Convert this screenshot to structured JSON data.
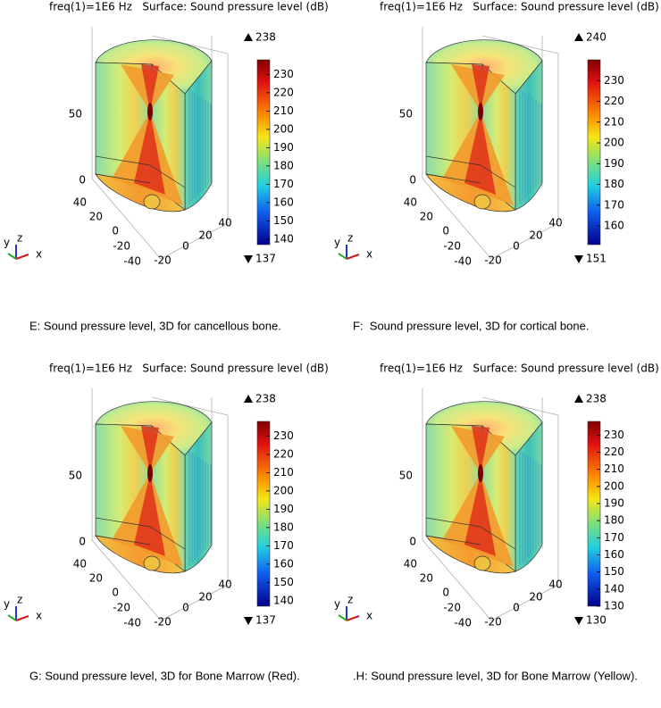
{
  "panels": [
    {
      "header": "freq(1)=1E6 Hz   Surface: Sound pressure level (dB)",
      "max": 238,
      "min": 137,
      "colorbar_ticks": [
        230,
        220,
        210,
        200,
        190,
        180,
        170,
        160,
        150,
        140
      ],
      "z_ticks": [
        50,
        0
      ],
      "y_ticks": [
        40,
        20,
        0,
        -20,
        -40
      ],
      "x_ticks": [
        -20,
        0,
        20,
        40
      ],
      "triad": [
        "y",
        "z",
        "x"
      ],
      "caption": "E: Sound pressure level, 3D for cancellous bone."
    },
    {
      "header": "freq(1)=1E6 Hz   Surface: Sound pressure level (dB)",
      "max": 240,
      "min": 151,
      "colorbar_ticks": [
        230,
        220,
        210,
        200,
        190,
        180,
        170,
        160
      ],
      "z_ticks": [
        50,
        0
      ],
      "y_ticks": [
        40,
        20,
        0,
        -20,
        -40
      ],
      "x_ticks": [
        -20,
        0,
        20,
        40
      ],
      "triad": [
        "y",
        "z",
        "x"
      ],
      "caption": "F:  Sound pressure level, 3D for cortical bone."
    },
    {
      "header": "freq(1)=1E6 Hz   Surface: Sound pressure level (dB)",
      "max": 238,
      "min": 137,
      "colorbar_ticks": [
        230,
        220,
        210,
        200,
        190,
        180,
        170,
        160,
        150,
        140
      ],
      "z_ticks": [
        50,
        0
      ],
      "y_ticks": [
        40,
        20,
        0,
        -20,
        -40
      ],
      "x_ticks": [
        -20,
        0,
        20,
        40
      ],
      "triad": [
        "y",
        "z",
        "x"
      ],
      "caption": "G: Sound pressure level, 3D for Bone Marrow (Red)."
    },
    {
      "header": "freq(1)=1E6 Hz   Surface: Sound pressure level (dB)",
      "max": 238,
      "min": 130,
      "colorbar_ticks": [
        230,
        220,
        210,
        200,
        190,
        180,
        170,
        160,
        150,
        140,
        130
      ],
      "z_ticks": [
        50,
        0
      ],
      "y_ticks": [
        40,
        20,
        0,
        -20,
        -40
      ],
      "x_ticks": [
        -20,
        0,
        20,
        40
      ],
      "triad": [
        "y",
        "z",
        "x"
      ],
      "caption": ".H: Sound pressure level, 3D for Bone Marrow (Yellow)."
    }
  ]
}
